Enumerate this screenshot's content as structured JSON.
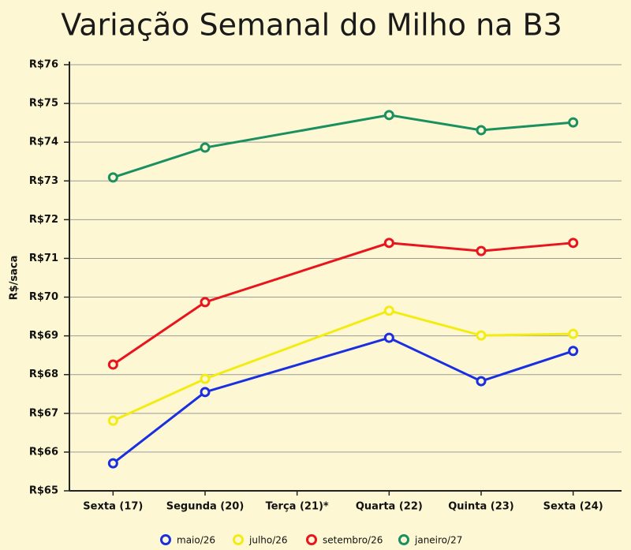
{
  "chart_data": {
    "type": "line",
    "title": "Variação Semanal do Milho na B3",
    "y_label": "R$/saca",
    "categories": [
      "Sexta (17)",
      "Segunda (20)",
      "Terça (21)*",
      "Quarta (22)",
      "Quinta (23)",
      "Sexta (24)"
    ],
    "series": [
      {
        "name": "maio/26",
        "color": "#1a2fe0",
        "values": [
          65.71,
          67.55,
          null,
          68.95,
          67.83,
          68.61
        ]
      },
      {
        "name": "julho/26",
        "color": "#f3ec12",
        "values": [
          66.81,
          67.89,
          null,
          69.65,
          69.01,
          69.05
        ]
      },
      {
        "name": "setembro/26",
        "color": "#e8141e",
        "values": [
          68.26,
          69.87,
          null,
          71.4,
          71.19,
          71.4
        ]
      },
      {
        "name": "janeiro/27",
        "color": "#1a9060",
        "values": [
          73.09,
          73.86,
          null,
          74.7,
          74.31,
          74.51
        ]
      }
    ],
    "ylim": [
      65,
      76
    ],
    "yticks": [
      {
        "value": 65,
        "label": "R$65"
      },
      {
        "value": 66,
        "label": "R$66"
      },
      {
        "value": 67,
        "label": "R$67"
      },
      {
        "value": 68,
        "label": "R$68"
      },
      {
        "value": 69,
        "label": "R$69"
      },
      {
        "value": 70,
        "label": "R$70"
      },
      {
        "value": 71,
        "label": "R$71"
      },
      {
        "value": 72,
        "label": "R$72"
      },
      {
        "value": 73,
        "label": "R$73"
      },
      {
        "value": 74,
        "label": "R$74"
      },
      {
        "value": 75,
        "label": "R$75"
      },
      {
        "value": 76,
        "label": "R$76"
      }
    ],
    "grid": true,
    "span_gaps": true,
    "legend": "bottom"
  }
}
